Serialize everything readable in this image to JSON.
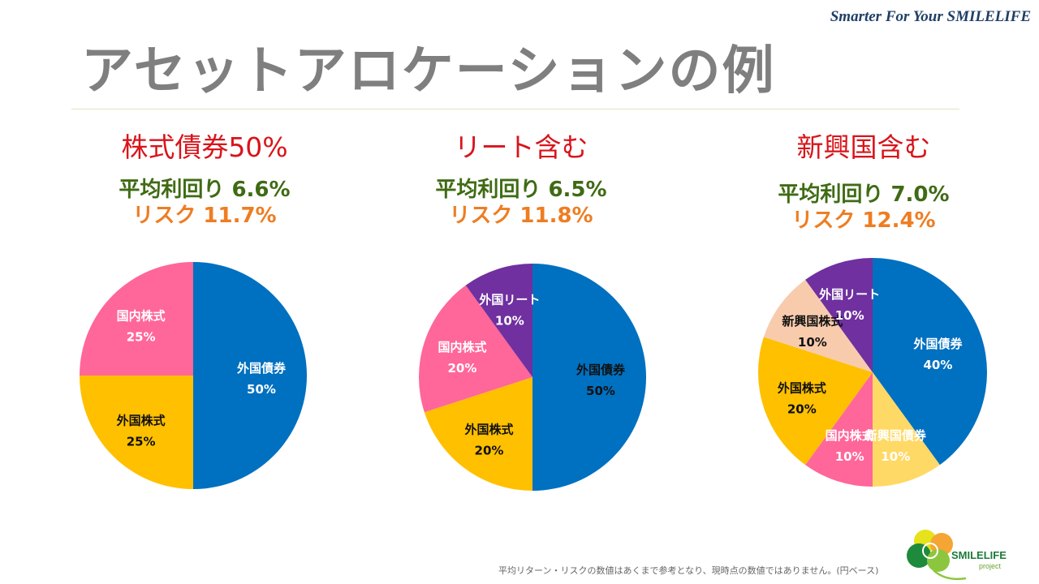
{
  "header": {
    "tagline": "Smarter For Your SMILELIFE",
    "title": "アセットアロケーションの例"
  },
  "footnote": "平均リターン・リスクの数値はあくまで参考となり、現時点の数値ではありません。(円ベース)",
  "logo": {
    "name": "SMILELIFE",
    "sub": "project"
  },
  "colors": {
    "foreign_bond": "#0070c0",
    "foreign_stock": "#ffc000",
    "domestic_stock": "#ff6699",
    "foreign_reit": "#7030a0",
    "emerging_stock": "#f8cbad",
    "emerging_bond": "#ffd966"
  },
  "chart_data": [
    {
      "type": "pie",
      "title": "株式債券50%",
      "return_label": "平均利回り 6.6%",
      "risk_label": "リスク 11.7%",
      "categories": [
        "外国債券",
        "外国株式",
        "国内株式"
      ],
      "values": [
        50,
        25,
        25
      ],
      "labels": [
        "50%",
        "25%",
        "25%"
      ],
      "colors": [
        "#0070c0",
        "#ffc000",
        "#ff6699"
      ],
      "label_colors": [
        "#ffffff",
        "#111111",
        "#ffffff"
      ]
    },
    {
      "type": "pie",
      "title": "リート含む",
      "return_label": "平均利回り 6.5%",
      "risk_label": "リスク 11.8%",
      "categories": [
        "外国債券",
        "外国株式",
        "国内株式",
        "外国リート"
      ],
      "values": [
        50,
        20,
        20,
        10
      ],
      "labels": [
        "50%",
        "20%",
        "20%",
        "10%"
      ],
      "colors": [
        "#0070c0",
        "#ffc000",
        "#ff6699",
        "#7030a0"
      ],
      "label_colors": [
        "#111111",
        "#111111",
        "#ffffff",
        "#ffffff"
      ]
    },
    {
      "type": "pie",
      "title": "新興国含む",
      "return_label": "平均利回り 7.0%",
      "risk_label": "リスク 12.4%",
      "categories": [
        "外国債券",
        "新興国債券",
        "国内株式",
        "外国株式",
        "新興国株式",
        "外国リート"
      ],
      "values": [
        40,
        10,
        10,
        20,
        10,
        10
      ],
      "labels": [
        "40%",
        "10%",
        "10%",
        "20%",
        "10%",
        "10%"
      ],
      "colors": [
        "#0070c0",
        "#ffd966",
        "#ff6699",
        "#ffc000",
        "#f8cbad",
        "#7030a0"
      ],
      "label_colors": [
        "#ffffff",
        "#ffffff",
        "#ffffff",
        "#111111",
        "#111111",
        "#ffffff"
      ]
    }
  ]
}
